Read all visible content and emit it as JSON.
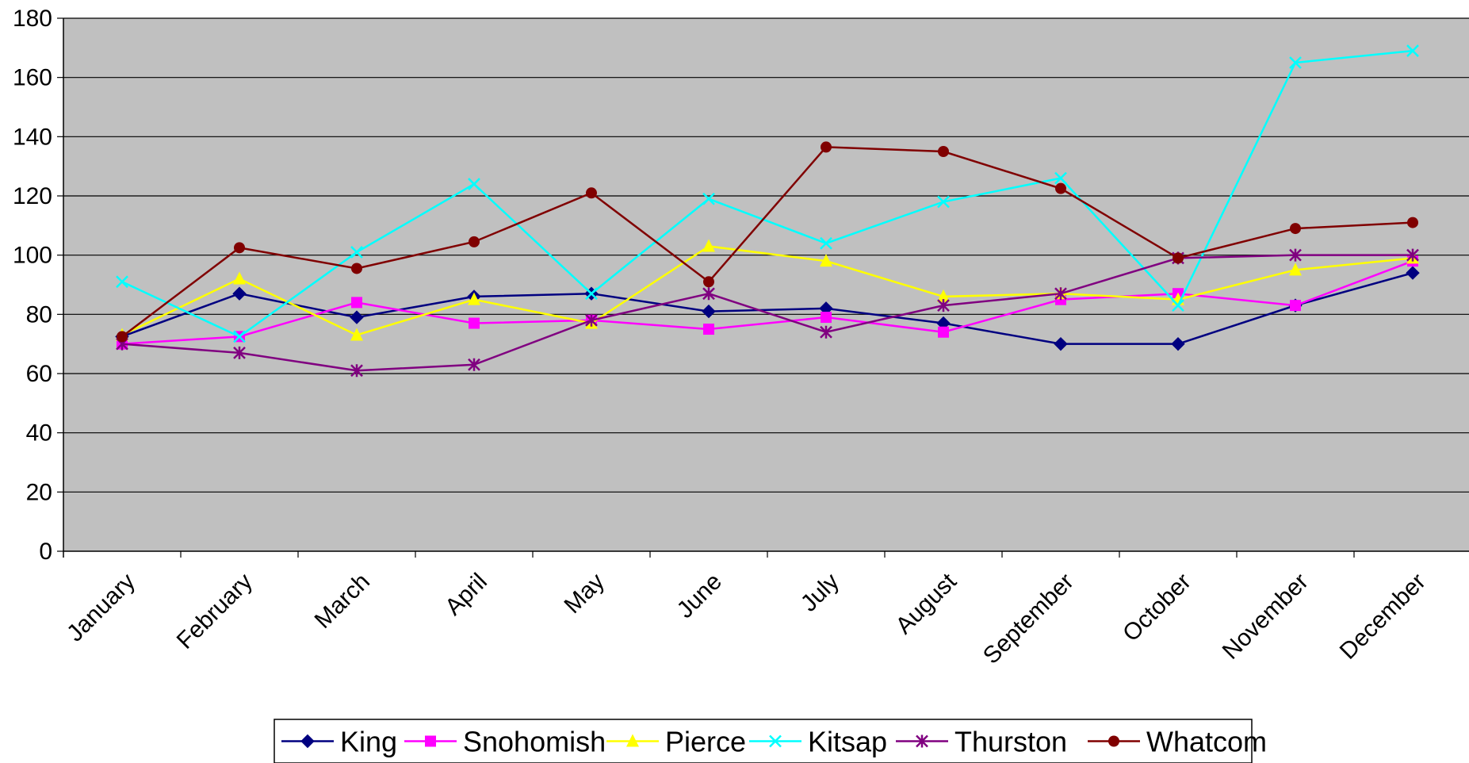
{
  "chart_data": {
    "type": "line",
    "categories": [
      "January",
      "February",
      "March",
      "April",
      "May",
      "June",
      "July",
      "August",
      "September",
      "October",
      "November",
      "December"
    ],
    "ylim": [
      0,
      180
    ],
    "yticks": [
      0,
      20,
      40,
      60,
      80,
      100,
      120,
      140,
      160,
      180
    ],
    "grid": true,
    "plot_background": "#c0c0c0",
    "legend_position": "bottom",
    "series": [
      {
        "name": "King",
        "color": "#000080",
        "marker": "diamond",
        "values": [
          72.5,
          87,
          79,
          86,
          87,
          81,
          82,
          77,
          70,
          70,
          83,
          94
        ]
      },
      {
        "name": "Snohomish",
        "color": "#ff00ff",
        "marker": "square",
        "values": [
          70,
          72.5,
          84,
          77,
          78,
          75,
          79,
          74,
          85,
          87,
          83,
          98
        ]
      },
      {
        "name": "Pierce",
        "color": "#ffff00",
        "marker": "triangle",
        "values": [
          73,
          92,
          73,
          85,
          77,
          103,
          98,
          86,
          87,
          85,
          95,
          99
        ]
      },
      {
        "name": "Kitsap",
        "color": "#00ffff",
        "marker": "x",
        "values": [
          91,
          72.5,
          101,
          124,
          87,
          119,
          104,
          118,
          126,
          83,
          165,
          169
        ]
      },
      {
        "name": "Thurston",
        "color": "#800080",
        "marker": "star",
        "values": [
          70,
          67,
          61,
          63,
          78,
          87,
          74,
          83,
          87,
          99,
          100,
          100
        ]
      },
      {
        "name": "Whatcom",
        "color": "#800000",
        "marker": "circle",
        "values": [
          72.5,
          102.5,
          95.5,
          104.5,
          121,
          91,
          136.5,
          135,
          122.5,
          99,
          109,
          111
        ]
      }
    ]
  }
}
